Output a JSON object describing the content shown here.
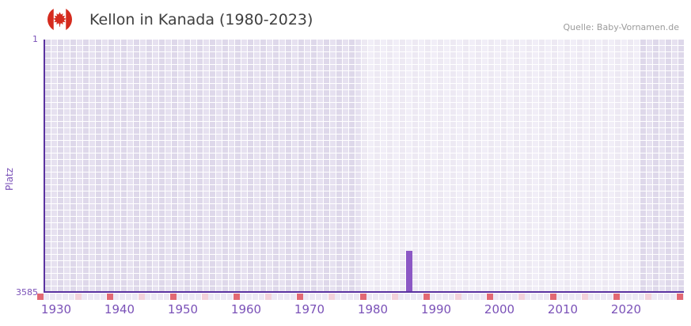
{
  "header": {
    "title": "Kellon in Kanada (1980-2023)",
    "source": "Quelle: Baby-Vornamen.de"
  },
  "chart_data": {
    "type": "bar",
    "title": "Kellon in Kanada (1980-2023)",
    "xlabel": "",
    "ylabel": "Platz",
    "y_axis": {
      "top_label": "1",
      "bottom_label": "3585",
      "inverted": true,
      "scale_bottom_value": 4270
    },
    "x_range": [
      1929,
      2030
    ],
    "x_ticks": [
      1930,
      1940,
      1950,
      1960,
      1970,
      1980,
      1990,
      2000,
      2010,
      2020
    ],
    "data_period": [
      1980,
      2023
    ],
    "bars": [
      {
        "year": 1986,
        "rank": 3585
      }
    ],
    "grid": true,
    "legend": null,
    "colors": {
      "bar": "#8c58c5",
      "axis": "#5a32a0",
      "tick_red": "#e26873",
      "tick_pink": "#f3d1da",
      "label_purple": "#7b52b8",
      "grid_cell_a": "#ded8ea",
      "grid_cell_b": "#e6e1f0",
      "strip_cell": "#ece8f4",
      "title_text": "#3f3f3f",
      "source_text": "#9b9b9b",
      "flag_red": "#d52b1e"
    }
  }
}
